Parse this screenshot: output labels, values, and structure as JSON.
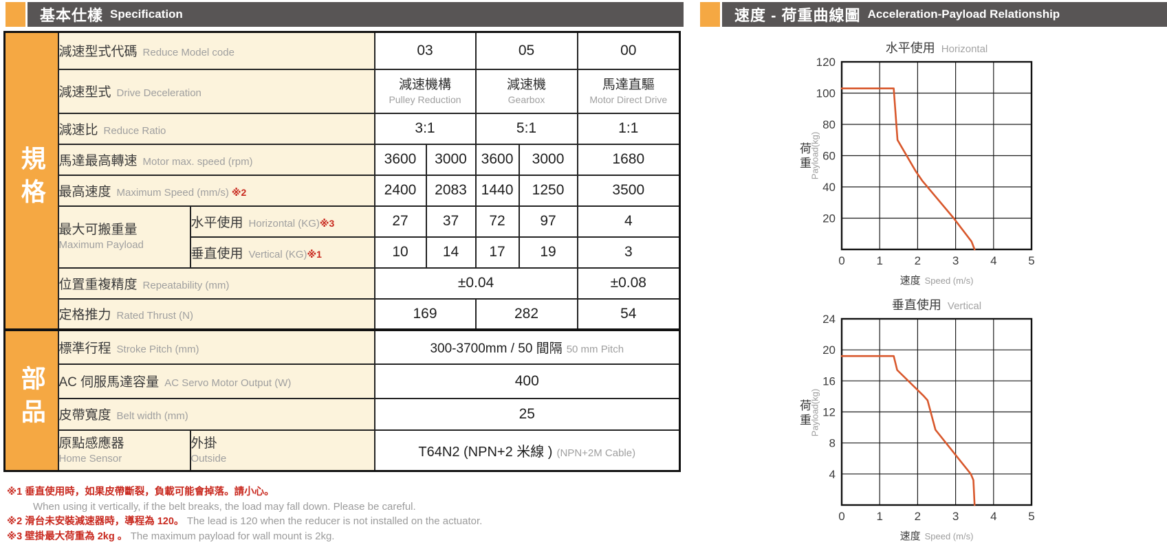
{
  "colors": {
    "accent_orange": "#F5A843",
    "header_gray": "#585555",
    "label_bg_cream": "#FCF3DC",
    "footnote_red": "#C8281E",
    "curve_orange": "#D8572B"
  },
  "left_header": {
    "title_cjk": "基本仕樣",
    "title_en": "Specification"
  },
  "right_header": {
    "title_cjk": "速度 - 荷重曲線圖",
    "title_en": "Acceleration-Payload Relationship"
  },
  "sidebar": {
    "spec": "規格",
    "parts": "部品"
  },
  "rows": {
    "model_code": {
      "cjk": "減速型式代碼",
      "en": "Reduce Model code",
      "v1": "03",
      "v2": "05",
      "v3": "00"
    },
    "drive_type": {
      "cjk": "減速型式",
      "en": "Drive Deceleration",
      "v1_cjk": "減速機構",
      "v1_en": "Pulley Reduction",
      "v2_cjk": "減速機",
      "v2_en": "Gearbox",
      "v3_cjk": "馬達直驅",
      "v3_en": "Motor Direct Drive"
    },
    "ratio": {
      "cjk": "減速比",
      "en": "Reduce Ratio",
      "v1": "3:1",
      "v2": "5:1",
      "v3": "1:1"
    },
    "motor_speed": {
      "cjk": "馬達最高轉速",
      "en": "Motor max. speed (rpm)",
      "v": [
        "3600",
        "3000",
        "3600",
        "3000",
        "1680"
      ]
    },
    "max_speed": {
      "cjk": "最高速度",
      "en": "Maximum Speed (mm/s)",
      "mark": "※2",
      "v": [
        "2400",
        "2083",
        "1440",
        "1250",
        "3500"
      ]
    },
    "payload": {
      "cjk": "最大可搬重量",
      "en": "Maximum Payload",
      "horizontal": {
        "cjk": "水平使用",
        "en": "Horizontal (KG)",
        "mark": "※3",
        "v": [
          "27",
          "37",
          "72",
          "97",
          "4"
        ]
      },
      "vertical": {
        "cjk": "垂直使用",
        "en": "Vertical (KG)",
        "mark": "※1",
        "v": [
          "10",
          "14",
          "17",
          "19",
          "3"
        ]
      }
    },
    "repeatability": {
      "cjk": "位置重複精度",
      "en": "Repeatability (mm)",
      "v1": "±0.04",
      "v2": "±0.08"
    },
    "thrust": {
      "cjk": "定格推力",
      "en": "Rated Thrust (N)",
      "v1": "169",
      "v2": "282",
      "v3": "54"
    },
    "stroke": {
      "cjk": "標準行程",
      "en": "Stroke Pitch (mm)",
      "v_cjk": "300-3700mm / 50 間隔",
      "v_en": "50 mm Pitch"
    },
    "servo": {
      "cjk": "AC 伺服馬達容量",
      "en": "AC Servo Motor Output (W)",
      "v": "400"
    },
    "belt": {
      "cjk": "皮帶寬度",
      "en": "Belt width (mm)",
      "v": "25"
    },
    "sensor": {
      "cjk": "原點感應器",
      "en": "Home Sensor",
      "sub_cjk": "外掛",
      "sub_en": "Outside",
      "v_main": "T64N2 (NPN+2 米線 )",
      "v_sub": "(NPN+2M Cable)"
    }
  },
  "footnotes": {
    "l1_red": "※1 垂直使用時，如果皮帶斷裂，負載可能會掉落。請小心。",
    "l1_en": "When using it vertically, if the belt breaks, the load may fall down. Please be careful.",
    "l2_red": "※2 滑台未安裝減速器時，導程為 120。",
    "l2_en": "The lead is 120 when the reducer is not installed on the actuator.",
    "l3_red": "※3 壁掛最大荷重為 2kg 。",
    "l3_en": "The maximum payload for wall mount is 2kg."
  },
  "chart_data": [
    {
      "type": "line",
      "title_cjk": "水平使用",
      "title_en": "Horizontal",
      "xlabel_cjk": "速度",
      "xlabel_en": "Speed (m/s)",
      "ylabel_cjk": "荷重",
      "ylabel_en": "Payload(kg)",
      "xlim": [
        0,
        5
      ],
      "ylim": [
        0,
        120
      ],
      "xticks": [
        0,
        1,
        2,
        3,
        4,
        5
      ],
      "yticks": [
        120,
        100,
        80,
        60,
        40,
        20
      ],
      "grid": true,
      "legend": "none",
      "line_color": "#D8572B",
      "points": [
        [
          0,
          103
        ],
        [
          1.37,
          103
        ],
        [
          1.47,
          70
        ],
        [
          1.95,
          50
        ],
        [
          2.12,
          44
        ],
        [
          2.95,
          20
        ],
        [
          3.42,
          5
        ],
        [
          3.5,
          0
        ]
      ]
    },
    {
      "type": "line",
      "title_cjk": "垂直使用",
      "title_en": "Vertical",
      "xlabel_cjk": "速度",
      "xlabel_en": "Speed (m/s)",
      "ylabel_cjk": "荷重",
      "ylabel_en": "Payload(kg)",
      "xlim": [
        0,
        5
      ],
      "ylim": [
        0,
        24
      ],
      "xticks": [
        0,
        1,
        2,
        3,
        4,
        5
      ],
      "yticks": [
        24,
        20,
        16,
        12,
        8,
        4
      ],
      "grid": true,
      "legend": "none",
      "line_color": "#D8572B",
      "points": [
        [
          0,
          19.2
        ],
        [
          1.37,
          19.2
        ],
        [
          1.46,
          17.4
        ],
        [
          2.15,
          14.1
        ],
        [
          2.26,
          13.5
        ],
        [
          2.47,
          9.7
        ],
        [
          3.4,
          4
        ],
        [
          3.47,
          3.2
        ],
        [
          3.5,
          0
        ]
      ]
    }
  ]
}
